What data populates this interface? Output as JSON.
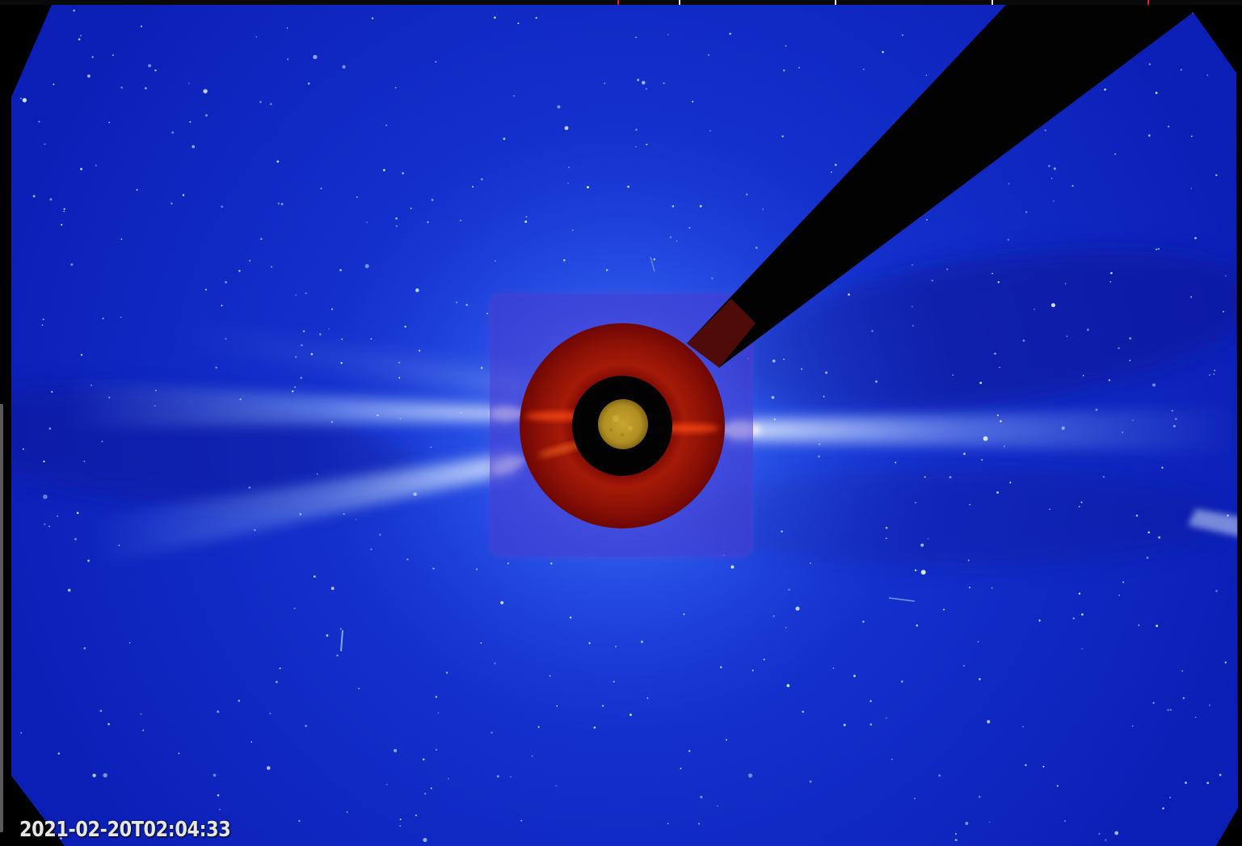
{
  "image": {
    "subject": "LASCO coronagraph view of the solar corona",
    "timestamp": "2021-02-20T02:04:33"
  },
  "overlay": {
    "timestamp_label": "2021-02-20T02:04:33"
  },
  "colors": {
    "background": "#000000",
    "sky_blue_deep": "#0716a8",
    "sky_blue_mid": "#1430cc",
    "corona_glow": "#cfe6ff",
    "occulter_red": "#8a0d06",
    "sun_gold": "#b59524",
    "pylon_black": "#020203",
    "timeline_tick": "#e8e8e8",
    "timeline_current": "#e02020"
  }
}
